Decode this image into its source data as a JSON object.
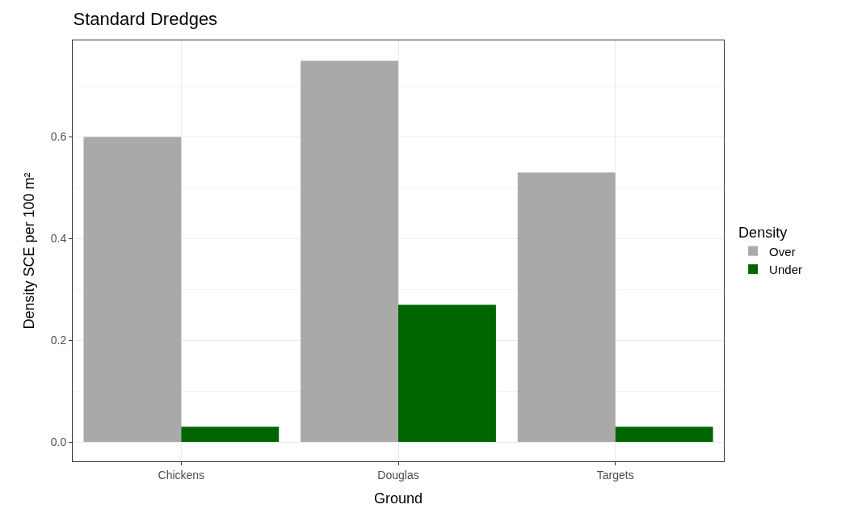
{
  "chart_data": {
    "type": "bar",
    "title": "Standard Dredges",
    "xlabel": "Ground",
    "ylabel": "Density SCE per 100 m²",
    "legend_title": "Density",
    "categories": [
      "Chickens",
      "Douglas",
      "Targets"
    ],
    "series": [
      {
        "name": "Over",
        "color": "#a9a9a9",
        "values": [
          0.6,
          0.75,
          0.53
        ]
      },
      {
        "name": "Under",
        "color": "#006400",
        "values": [
          0.03,
          0.27,
          0.03
        ]
      }
    ],
    "ylim": [
      -0.038,
      0.79
    ],
    "yticks": [
      {
        "value": 0,
        "label": "0.0"
      },
      0.2,
      0.4,
      0.6
    ],
    "grid": true,
    "legend": "right"
  }
}
